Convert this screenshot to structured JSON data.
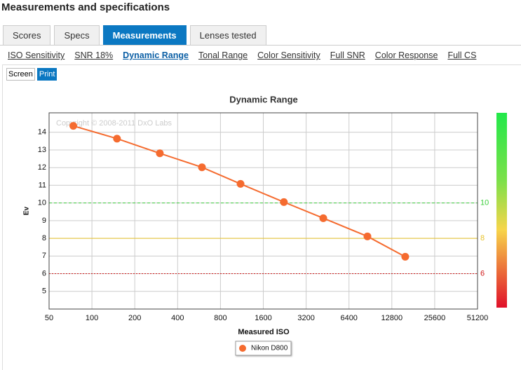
{
  "header": {
    "title": "Measurements and specifications"
  },
  "tabs": [
    {
      "label": "Scores",
      "active": false
    },
    {
      "label": "Specs",
      "active": false
    },
    {
      "label": "Measurements",
      "active": true
    },
    {
      "label": "Lenses tested",
      "active": false
    }
  ],
  "subtabs": [
    {
      "label": "ISO Sensitivity",
      "active": false
    },
    {
      "label": "SNR 18%",
      "active": false
    },
    {
      "label": "Dynamic Range",
      "active": true
    },
    {
      "label": "Tonal Range",
      "active": false
    },
    {
      "label": "Color Sensitivity",
      "active": false
    },
    {
      "label": "Full SNR",
      "active": false
    },
    {
      "label": "Color Response",
      "active": false
    },
    {
      "label": "Full CS",
      "active": false
    }
  ],
  "buttons": [
    {
      "label": "Screen",
      "active": false
    },
    {
      "label": "Print",
      "active": true
    }
  ],
  "chart_data": {
    "type": "line",
    "title": "Dynamic Range",
    "xlabel": "Measured ISO",
    "ylabel": "Ev",
    "annotation": "Copyright © 2008-2011 DxO Labs",
    "x": [
      74,
      150,
      300,
      593,
      1107,
      2232,
      4222,
      8624,
      15900
    ],
    "series": [
      {
        "name": "Nikon D800",
        "color": "#f56b2f",
        "values": [
          14.36,
          13.64,
          12.81,
          12.02,
          11.08,
          10.05,
          9.14,
          8.11,
          6.96
        ]
      }
    ],
    "xlog": true,
    "xlim": [
      50,
      51200
    ],
    "xticks": [
      50,
      100,
      200,
      400,
      800,
      1600,
      3200,
      6400,
      12800,
      25600,
      51200
    ],
    "ylim": [
      4,
      15.1
    ],
    "yticks": [
      5,
      6,
      7,
      8,
      9,
      10,
      11,
      12,
      13,
      14
    ],
    "grid": true,
    "reference_lines": [
      {
        "value": 10,
        "color": "#3ecf3e",
        "style": "dashed"
      },
      {
        "value": 8,
        "color": "#e8c22a",
        "style": "solid"
      },
      {
        "value": 6,
        "color": "#d01818",
        "style": "dotted"
      }
    ]
  }
}
